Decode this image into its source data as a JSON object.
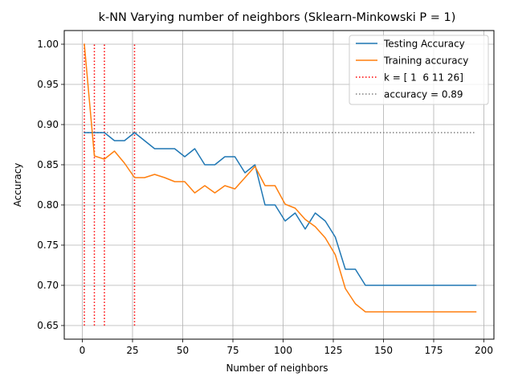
{
  "chart_data": {
    "type": "line",
    "title": "k-NN Varying number of neighbors (Sklearn-Minkowski P = 1)",
    "xlabel": "Number of neighbors",
    "ylabel": "Accuracy",
    "xlim": [
      -9,
      205
    ],
    "ylim": [
      0.633,
      1.017
    ],
    "xticks": [
      0,
      25,
      50,
      75,
      100,
      125,
      150,
      175,
      200
    ],
    "yticks": [
      0.65,
      0.7,
      0.75,
      0.8,
      0.85,
      0.9,
      0.95,
      1.0
    ],
    "ytick_labels": [
      "0.65",
      "0.70",
      "0.75",
      "0.80",
      "0.85",
      "0.90",
      "0.95",
      "1.00"
    ],
    "grid": true,
    "legend_position": "top-right",
    "x": [
      1,
      6,
      11,
      16,
      21,
      26,
      31,
      36,
      41,
      46,
      51,
      56,
      61,
      66,
      71,
      76,
      81,
      86,
      91,
      96,
      101,
      106,
      111,
      116,
      121,
      126,
      131,
      136,
      141,
      146,
      151,
      156,
      161,
      166,
      171,
      176,
      181,
      186,
      191,
      196
    ],
    "series": [
      {
        "name": "Testing Accuracy",
        "color": "#1f77b4",
        "values": [
          0.89,
          0.89,
          0.89,
          0.88,
          0.88,
          0.89,
          0.88,
          0.87,
          0.87,
          0.87,
          0.86,
          0.87,
          0.85,
          0.85,
          0.86,
          0.86,
          0.84,
          0.85,
          0.8,
          0.8,
          0.78,
          0.79,
          0.77,
          0.79,
          0.78,
          0.76,
          0.72,
          0.72,
          0.7,
          0.7,
          0.7,
          0.7,
          0.7,
          0.7,
          0.7,
          0.7,
          0.7,
          0.7,
          0.7,
          0.7
        ]
      },
      {
        "name": "Training accuracy",
        "color": "#ff7f0e",
        "values": [
          1.0,
          0.861,
          0.857,
          0.867,
          0.852,
          0.834,
          0.834,
          0.838,
          0.834,
          0.829,
          0.829,
          0.815,
          0.824,
          0.815,
          0.824,
          0.82,
          0.834,
          0.848,
          0.824,
          0.824,
          0.801,
          0.796,
          0.782,
          0.773,
          0.759,
          0.738,
          0.696,
          0.677,
          0.667,
          0.667,
          0.667,
          0.667,
          0.667,
          0.667,
          0.667,
          0.667,
          0.667,
          0.667,
          0.667,
          0.667
        ]
      }
    ],
    "vlines": {
      "name": "k = [ 1  6 11 26]",
      "color": "#ff0000",
      "x": [
        1,
        6,
        11,
        26
      ],
      "ymin": 0.65,
      "ymax": 1.0
    },
    "hline": {
      "name": "accuracy = 0.89",
      "color": "#808080",
      "y": 0.89,
      "xmin": 1,
      "xmax": 196
    }
  }
}
